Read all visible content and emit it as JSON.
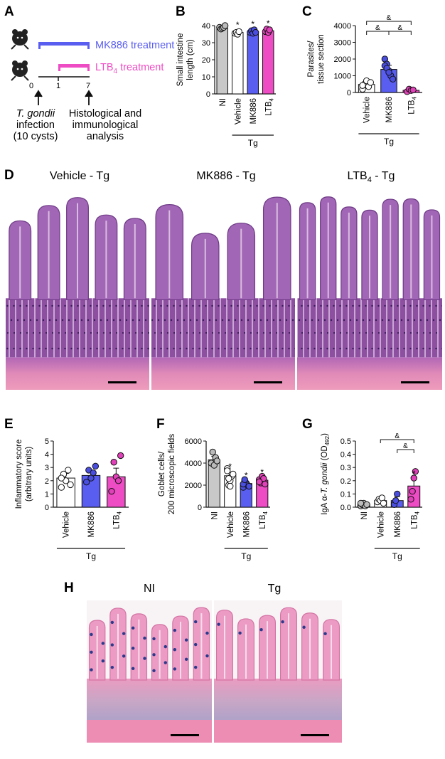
{
  "panels": {
    "A": {
      "label": "A",
      "mk886_label": "MK886 treatment",
      "ltb4_label": "LTB",
      "ltb4_sub": "4",
      "ltb4_suffix": " treatment",
      "timeline_ticks": [
        "0",
        "1",
        "7"
      ],
      "infection_line1": "T. gondii",
      "infection_line2": "infection",
      "infection_line3": "(10 cysts)",
      "analysis_line1": "Histological and",
      "analysis_line2": "immunological",
      "analysis_line3": "analysis"
    },
    "B": {
      "label": "B"
    },
    "C": {
      "label": "C"
    },
    "D": {
      "label": "D",
      "titles": [
        "Vehicle - Tg",
        "MK886 - Tg",
        "LTB",
        "4",
        " - Tg"
      ]
    },
    "E": {
      "label": "E"
    },
    "F": {
      "label": "F"
    },
    "G": {
      "label": "G"
    },
    "H": {
      "label": "H",
      "titles": [
        "NI",
        "Tg"
      ]
    }
  },
  "colors": {
    "ni": "#c8c8c8",
    "vehicle": "#ffffff",
    "mk886": "#4a4ee0",
    "ltb4": "#e040b8",
    "mk886_bar": "#5a5ef0",
    "ltb4_bar": "#ee4cc4",
    "he_stain": "#9a5aa8",
    "ab_stain": "#e890b4"
  },
  "chart_data": [
    {
      "id": "B",
      "type": "bar",
      "ylabel": "Small intestine\nlength (cm)",
      "categories": [
        "NI",
        "Vehicle",
        "MK886",
        "LTB4"
      ],
      "group_label": "Tg",
      "group_span": [
        1,
        3
      ],
      "ylim": [
        0,
        40
      ],
      "yticks": [
        0,
        10,
        20,
        30,
        40
      ],
      "values": [
        38.5,
        36,
        36.5,
        37
      ],
      "errors": [
        1,
        1,
        1,
        1
      ],
      "points": [
        [
          39,
          38,
          38.5,
          39,
          40
        ],
        [
          35.5,
          36,
          35,
          36.5
        ],
        [
          36,
          37,
          35.5,
          37.5,
          36
        ],
        [
          36.5,
          38,
          36,
          37.5
        ]
      ],
      "stars": [
        "",
        "*",
        "*",
        "*"
      ]
    },
    {
      "id": "C",
      "type": "bar",
      "ylabel": "Parasites/\ntissue section",
      "categories": [
        "Vehicle",
        "MK886",
        "LTB4"
      ],
      "group_label": "Tg",
      "group_span": [
        0,
        2
      ],
      "ylim": [
        0,
        4000
      ],
      "yticks": [
        0,
        1000,
        2000,
        3000,
        4000
      ],
      "values": [
        480,
        1380,
        130
      ],
      "errors": [
        150,
        250,
        50
      ],
      "points": [
        [
          200,
          500,
          700,
          350,
          600,
          420
        ],
        [
          2000,
          1700,
          1300,
          1000,
          800,
          1600,
          1450,
          1200
        ],
        [
          50,
          200,
          120,
          150
        ]
      ],
      "brackets": [
        {
          "a": 0,
          "b": 2,
          "label": "&",
          "level": 2
        },
        {
          "a": 0,
          "b": 1,
          "label": "&",
          "level": 1
        },
        {
          "a": 1,
          "b": 2,
          "label": "&",
          "level": 1
        }
      ]
    },
    {
      "id": "E",
      "type": "bar",
      "ylabel": "Inflammatory score\n(arbitrary units)",
      "categories": [
        "Vehicle",
        "MK886",
        "LTB4"
      ],
      "group_label": "Tg",
      "group_span": [
        0,
        2
      ],
      "ylim": [
        0,
        5
      ],
      "yticks": [
        0,
        1,
        2,
        3,
        4,
        5
      ],
      "values": [
        2.2,
        2.4,
        2.3
      ],
      "errors": [
        0.35,
        0.35,
        0.65
      ],
      "points": [
        [
          1.5,
          2.5,
          2.0,
          2.8,
          1.7,
          2.2
        ],
        [
          1.9,
          2.8,
          2.2,
          2.6,
          3.1
        ],
        [
          1.2,
          3.4,
          2.3,
          2.0,
          3.9
        ]
      ]
    },
    {
      "id": "F",
      "type": "bar",
      "ylabel": "Goblet cells/\n200 microscopic fields",
      "categories": [
        "NI",
        "Vehicle",
        "MK886",
        "LTB4"
      ],
      "group_label": "Tg",
      "group_span": [
        1,
        3
      ],
      "ylim": [
        0,
        6000
      ],
      "yticks": [
        0,
        2000,
        4000,
        6000
      ],
      "values": [
        4300,
        2850,
        2150,
        2450
      ],
      "errors": [
        300,
        300,
        200,
        200
      ],
      "points": [
        [
          4000,
          5000,
          3800,
          4500,
          4200
        ],
        [
          3500,
          2000,
          2400,
          2800,
          3000,
          3300,
          2600,
          1900
        ],
        [
          1800,
          2400,
          2200,
          2000,
          1900,
          2100,
          2500
        ],
        [
          2500,
          2200,
          2800,
          2600,
          2100,
          2300
        ]
      ],
      "stars": [
        "",
        "*",
        "*",
        "*"
      ]
    },
    {
      "id": "G",
      "type": "bar",
      "ylabel": "IgA α-T. gondii (OD492)",
      "categories": [
        "NI",
        "Vehicle",
        "MK886",
        "LTB4"
      ],
      "group_label": "Tg",
      "group_span": [
        1,
        3
      ],
      "ylim": [
        0,
        0.5
      ],
      "yticks": [
        0.0,
        0.1,
        0.2,
        0.3,
        0.4,
        0.5
      ],
      "values": [
        0.02,
        0.05,
        0.05,
        0.16
      ],
      "errors": [
        0.01,
        0.015,
        0.03,
        0.05
      ],
      "points": [
        [
          0.01,
          0.02,
          0.03,
          0.01,
          0.02,
          0.03
        ],
        [
          0.04,
          0.06,
          0.05,
          0.07,
          0.03
        ],
        [
          0.02,
          0.05,
          0.1
        ],
        [
          0.06,
          0.12,
          0.22,
          0.27
        ]
      ],
      "stars": [
        "",
        "",
        "",
        "*"
      ],
      "brackets": [
        {
          "a": 1,
          "b": 3,
          "label": "&",
          "level": 2
        },
        {
          "a": 2,
          "b": 3,
          "label": "&",
          "level": 1
        }
      ]
    }
  ]
}
